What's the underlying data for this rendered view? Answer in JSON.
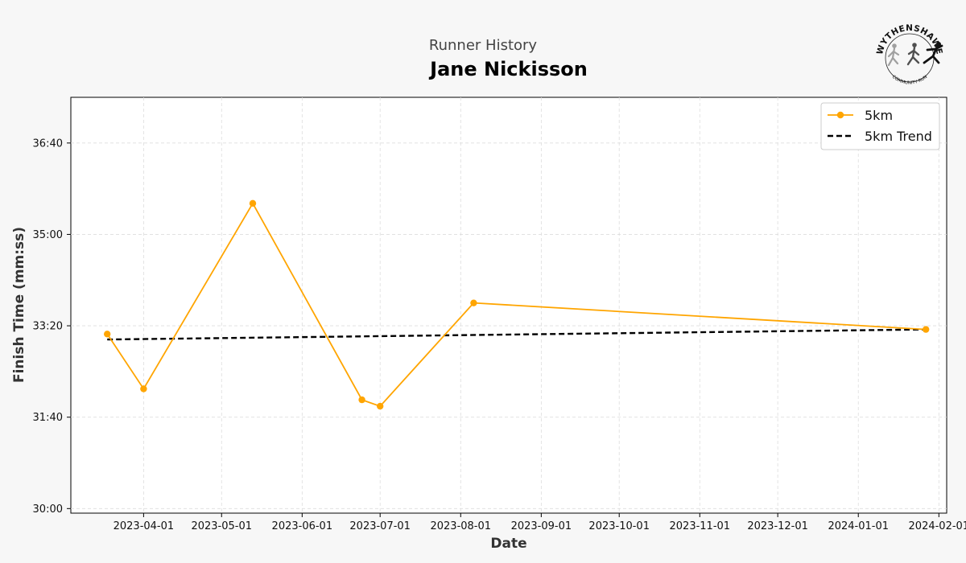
{
  "header": {
    "supertitle": "Runner History",
    "title": "Jane Nickisson"
  },
  "logo": {
    "icon": "wythenshawe-running-logo",
    "top_text": "WYTHENSHAWE",
    "bottom_text": "COMMUNITY RUN"
  },
  "colors": {
    "series": "#FFA500",
    "trend": "#000000",
    "grid": "#dddddd",
    "background": "#f7f7f7",
    "plot_background": "#ffffff"
  },
  "chart_data": {
    "type": "line",
    "xlabel": "Date",
    "ylabel": "Finish Time (mm:ss)",
    "x_ticks": [
      "2023-04-01",
      "2023-05-01",
      "2023-06-01",
      "2023-07-01",
      "2023-08-01",
      "2023-09-01",
      "2023-10-01",
      "2023-11-01",
      "2023-12-01",
      "2024-01-01",
      "2024-02-01"
    ],
    "y_ticks": [
      "30:00",
      "31:40",
      "33:20",
      "35:00",
      "36:40"
    ],
    "xlim": [
      "2023-03-04",
      "2024-02-04"
    ],
    "ylim": [
      "29:55",
      "37:30"
    ],
    "grid": true,
    "grid_style": "dashed",
    "legend_position": "top-right",
    "series": [
      {
        "name": "5km",
        "style": "line-with-markers",
        "x": [
          "2023-03-18",
          "2023-04-01",
          "2023-05-13",
          "2023-06-24",
          "2023-07-01",
          "2023-08-06",
          "2024-01-27"
        ],
        "y": [
          "33:11",
          "32:11",
          "35:34",
          "31:59",
          "31:52",
          "33:45",
          "33:16"
        ]
      },
      {
        "name": "5km Trend",
        "style": "dashed",
        "x": [
          "2023-03-18",
          "2024-01-27"
        ],
        "y": [
          "33:05",
          "33:16"
        ]
      }
    ]
  }
}
